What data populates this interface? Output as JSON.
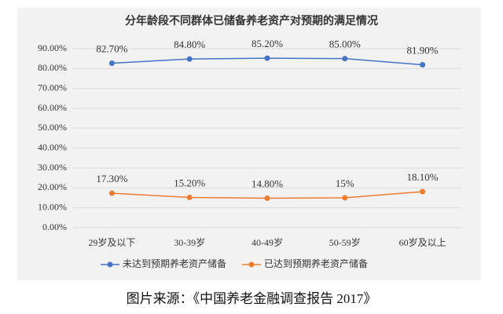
{
  "chart_data": {
    "type": "line",
    "title": "分年龄段不同群体已储备养老资产对预期的满足情况",
    "categories": [
      "29岁及以下",
      "30-39岁",
      "40-49岁",
      "50-59岁",
      "60岁及以上"
    ],
    "series": [
      {
        "name": "未达到预期养老资产储备",
        "color": "#4472c4",
        "values": [
          82.7,
          84.8,
          85.2,
          85.0,
          81.9
        ],
        "value_labels": [
          "82.70%",
          "84.80%",
          "85.20%",
          "85.00%",
          "81.90%"
        ]
      },
      {
        "name": "已达到预期养老资产储备",
        "color": "#ed7d31",
        "values": [
          17.3,
          15.2,
          14.8,
          15,
          18.1
        ],
        "value_labels": [
          "17.30%",
          "15.20%",
          "14.80%",
          "15%",
          "18.10%"
        ]
      }
    ],
    "ylim": [
      0,
      90
    ],
    "yticks": [
      {
        "value": 0,
        "label": "0.00%"
      },
      {
        "value": 10,
        "label": "10.00%"
      },
      {
        "value": 20,
        "label": "20.00%"
      },
      {
        "value": 30,
        "label": "30.00%"
      },
      {
        "value": 40,
        "label": "40.00%"
      },
      {
        "value": 50,
        "label": "50.00%"
      },
      {
        "value": 60,
        "label": "60.00%"
      },
      {
        "value": 70,
        "label": "70.00%"
      },
      {
        "value": 80,
        "label": "80.00%"
      },
      {
        "value": 90,
        "label": "90.00%"
      }
    ],
    "grid": true,
    "legend": "bottom"
  },
  "caption": "图片来源：《中国养老金融调查报告 2017》"
}
